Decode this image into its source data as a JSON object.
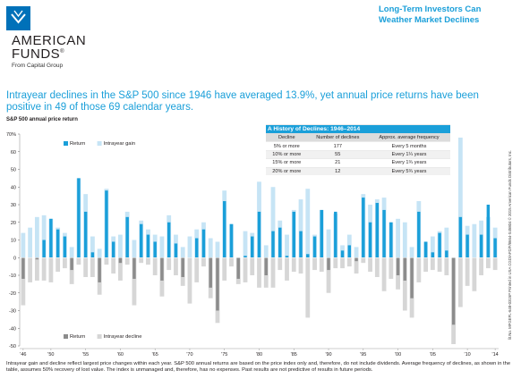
{
  "brand": {
    "line1": "AMERICAN",
    "line2": "FUNDS",
    "registered": "®",
    "tagline": "From Capital Group"
  },
  "header": {
    "title": "Long-Term Investors Can Weather Market Declines"
  },
  "headline": "Intrayear declines in the S&P 500 since 1946 have averaged 13.9%, yet annual price returns have been positive in 49 of those 69 calendar years.",
  "colors": {
    "accent": "#1a9fd9",
    "return_pos": "#1a9fd9",
    "gain": "#c6e4f5",
    "return_neg": "#8c8c8c",
    "decline": "#d6d6d6"
  },
  "table": {
    "title": "A History of Declines: 1946–2014",
    "headers": [
      "Decline",
      "Number of declines",
      "Approx. average frequency"
    ],
    "rows": [
      [
        "5% or more",
        "177",
        "Every 5 months"
      ],
      [
        "10% or more",
        "55",
        "Every 1¼ years"
      ],
      [
        "15% or more",
        "21",
        "Every 1¾ years"
      ],
      [
        "20% or more",
        "12",
        "Every 5¾ years"
      ]
    ]
  },
  "footer": "Intrayear gain and decline reflect largest price changes within each year. S&P 500 annual returns are based on the price index only and, therefore, do not include dividends. Average frequency of declines, as shown in the table, assumes 50% recovery of lost value. The index is unmanaged and, therefore, has no expenses. Past results are not predictive of results in future periods.",
  "sidebar": "lit.No. MFGEFL-648-0315P   Printed in USA   CGD/AFD/F/8664-S45804   © 2015 American Funds Distributors, Inc.",
  "chart_data": {
    "type": "bar",
    "ylabel": "S&P 500 annual price return",
    "ylim": [
      -50,
      70
    ],
    "yticks": [
      -50,
      -40,
      -30,
      -20,
      -10,
      0,
      10,
      20,
      30,
      40,
      50,
      60,
      70
    ],
    "ytick_suffix_top": "%",
    "xtick_labels": [
      {
        "year": 1946,
        "label": "'46"
      },
      {
        "year": 1950,
        "label": "'50"
      },
      {
        "year": 1955,
        "label": "'55"
      },
      {
        "year": 1960,
        "label": "'60"
      },
      {
        "year": 1965,
        "label": "'65"
      },
      {
        "year": 1970,
        "label": "'70"
      },
      {
        "year": 1975,
        "label": "'75"
      },
      {
        "year": 1980,
        "label": "'80"
      },
      {
        "year": 1985,
        "label": "'85"
      },
      {
        "year": 1990,
        "label": "'90"
      },
      {
        "year": 1995,
        "label": "'95"
      },
      {
        "year": 2000,
        "label": "'00"
      },
      {
        "year": 2005,
        "label": "'05"
      },
      {
        "year": 2010,
        "label": "'10"
      },
      {
        "year": 2014,
        "label": "'14"
      }
    ],
    "legend_upper": [
      "Return",
      "Intrayear gain"
    ],
    "legend_lower": [
      "Return",
      "Intrayear decline"
    ],
    "years": [
      1946,
      1947,
      1948,
      1949,
      1950,
      1951,
      1952,
      1953,
      1954,
      1955,
      1956,
      1957,
      1958,
      1959,
      1960,
      1961,
      1962,
      1963,
      1964,
      1965,
      1966,
      1967,
      1968,
      1969,
      1970,
      1971,
      1972,
      1973,
      1974,
      1975,
      1976,
      1977,
      1978,
      1979,
      1980,
      1981,
      1982,
      1983,
      1984,
      1985,
      1986,
      1987,
      1988,
      1989,
      1990,
      1991,
      1992,
      1993,
      1994,
      1995,
      1996,
      1997,
      1998,
      1999,
      2000,
      2001,
      2002,
      2003,
      2004,
      2005,
      2006,
      2007,
      2008,
      2009,
      2010,
      2011,
      2012,
      2013,
      2014
    ],
    "series": [
      {
        "name": "Return",
        "values": [
          -12,
          0,
          -1,
          10,
          22,
          16,
          12,
          -7,
          45,
          26,
          3,
          -14,
          38,
          9,
          -3,
          23,
          -12,
          19,
          13,
          9,
          -13,
          20,
          8,
          -11,
          0,
          11,
          16,
          -17,
          -30,
          32,
          19,
          -12,
          1,
          12,
          26,
          -10,
          15,
          17,
          1,
          26,
          15,
          2,
          12,
          27,
          -7,
          26,
          4,
          7,
          -2,
          34,
          20,
          31,
          27,
          20,
          -10,
          -13,
          -23,
          26,
          9,
          3,
          14,
          4,
          -38,
          23,
          13,
          0,
          13,
          30,
          11
        ]
      },
      {
        "name": "Intrayear gain",
        "values": [
          14,
          17,
          23,
          24,
          22,
          17,
          14,
          6,
          45,
          36,
          12,
          5,
          39,
          12,
          13,
          26,
          10,
          21,
          16,
          13,
          12,
          24,
          13,
          6,
          12,
          16,
          20,
          11,
          9,
          38,
          19,
          0,
          15,
          14,
          43,
          7,
          40,
          21,
          13,
          27,
          33,
          39,
          13,
          27,
          16,
          25,
          7,
          13,
          6,
          36,
          30,
          33,
          34,
          20,
          22,
          20,
          6,
          32,
          9,
          12,
          15,
          17,
          0,
          68,
          18,
          19,
          21,
          23,
          17
        ]
      },
      {
        "name": "Intrayear decline",
        "values": [
          -27,
          -14,
          -13,
          -13,
          -14,
          -8,
          -6,
          -15,
          -4,
          -11,
          -11,
          -21,
          -4,
          -9,
          -13,
          -4,
          -27,
          -3,
          -4,
          -10,
          -22,
          -7,
          -10,
          -16,
          -26,
          -14,
          -5,
          -23,
          -37,
          -13,
          -5,
          -15,
          -14,
          -10,
          -17,
          -17,
          -17,
          -7,
          -13,
          -8,
          -9,
          -34,
          -7,
          -8,
          -20,
          -6,
          -6,
          -5,
          -9,
          -3,
          -8,
          -11,
          -19,
          -12,
          -18,
          -30,
          -34,
          -14,
          -8,
          -7,
          -8,
          -10,
          -49,
          -28,
          -16,
          -19,
          -10,
          -6,
          -7
        ]
      }
    ]
  }
}
